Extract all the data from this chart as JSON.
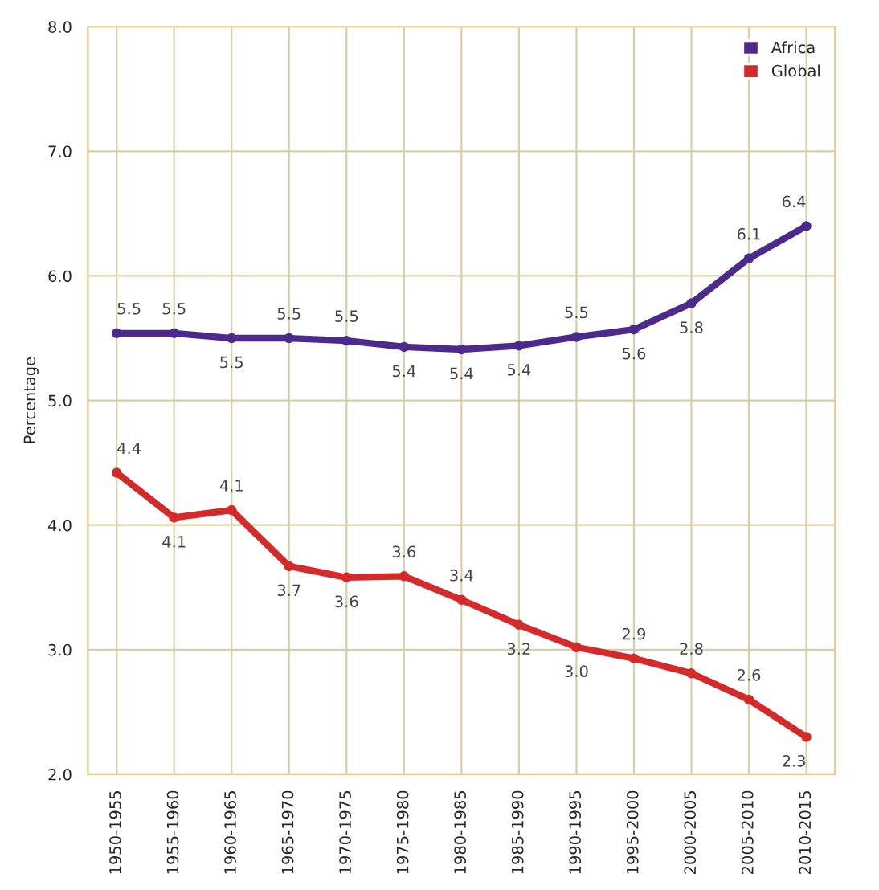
{
  "chart_data": {
    "type": "line",
    "ylabel": "Percentage",
    "categories": [
      "1950-1955",
      "1955-1960",
      "1960-1965",
      "1965-1970",
      "1970-1975",
      "1975-1980",
      "1980-1985",
      "1985-1990",
      "1990-1995",
      "1995-2000",
      "2000-2005",
      "2005-2010",
      "2010-2015"
    ],
    "series": [
      {
        "name": "Africa",
        "color": "#4b2a8c",
        "values": [
          5.54,
          5.54,
          5.5,
          5.5,
          5.48,
          5.43,
          5.41,
          5.44,
          5.51,
          5.57,
          5.78,
          6.14,
          6.4
        ],
        "value_labels": [
          "5.5",
          "5.5",
          "5.5",
          "5.5",
          "5.5",
          "5.4",
          "5.4",
          "5.4",
          "5.5",
          "5.6",
          "5.8",
          "6.1",
          "6.4"
        ]
      },
      {
        "name": "Global",
        "color": "#d42a2a",
        "values": [
          4.42,
          4.06,
          4.12,
          3.67,
          3.58,
          3.59,
          3.4,
          3.2,
          3.02,
          2.93,
          2.81,
          2.6,
          2.3
        ],
        "value_labels": [
          "4.4",
          "4.1",
          "4.1",
          "3.7",
          "3.6",
          "3.6",
          "3.4",
          "3.2",
          "3.0",
          "2.9",
          "2.8",
          "2.6",
          "2.3"
        ]
      }
    ],
    "ylim": [
      2.0,
      8.0
    ],
    "yticks": [
      {
        "value": 2,
        "label": "2.0"
      },
      {
        "value": 3,
        "label": "3.0"
      },
      {
        "value": 4,
        "label": "4.0"
      },
      {
        "value": 5,
        "label": "5.0"
      },
      {
        "value": 6,
        "label": "6.0"
      },
      {
        "value": 7,
        "label": "7.0"
      },
      {
        "value": 8,
        "label": "8.0"
      }
    ],
    "grid": true,
    "legend": "top right",
    "marker": "circle",
    "line_style": "solid"
  }
}
